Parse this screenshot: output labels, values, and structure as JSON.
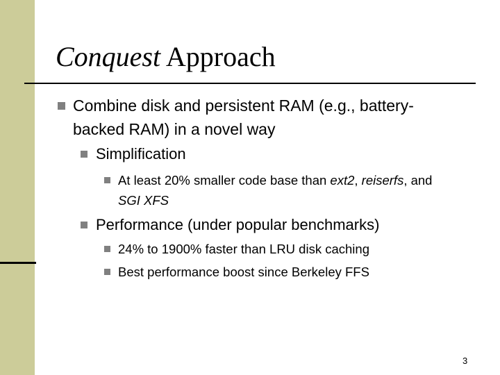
{
  "slide": {
    "title": {
      "italic": "Conquest",
      "rest": "Approach"
    },
    "items": [
      {
        "runs": [
          {
            "text": "Combine disk and persistent RAM (e.g., battery-backed RAM) in a novel way"
          }
        ]
      },
      {
        "runs": [
          {
            "text": "Simplification"
          }
        ]
      },
      {
        "runs": [
          {
            "text": "At least 20% smaller code base than "
          },
          {
            "text": "ext2",
            "italic": true
          },
          {
            "text": ", "
          },
          {
            "text": "reiserfs",
            "italic": true
          },
          {
            "text": ", and "
          },
          {
            "text": "SGI XFS",
            "italic": true
          }
        ]
      },
      {
        "runs": [
          {
            "text": "Performance (under popular benchmarks)"
          }
        ]
      },
      {
        "runs": [
          {
            "text": "24% to 1900% faster than LRU disk caching"
          }
        ]
      },
      {
        "runs": [
          {
            "text": "Best performance boost since Berkeley FFS"
          }
        ]
      }
    ],
    "page_number": "3"
  }
}
